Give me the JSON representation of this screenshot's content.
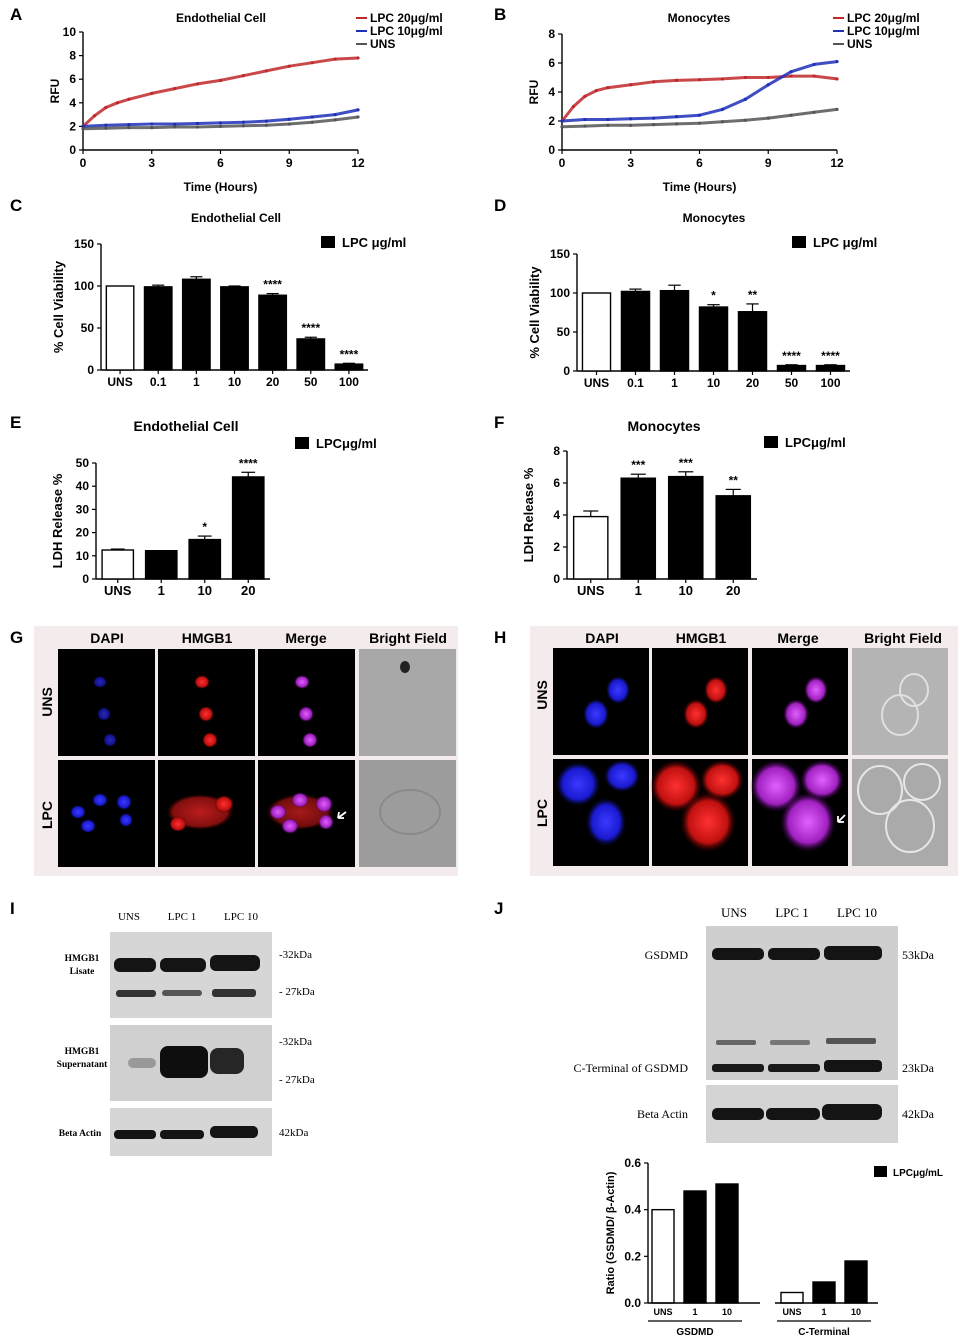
{
  "panels": {
    "A": "A",
    "B": "B",
    "C": "C",
    "D": "D",
    "E": "E",
    "F": "F",
    "G": "G",
    "H": "H",
    "I": "I",
    "J": "J"
  },
  "chart_data": [
    {
      "id": "A",
      "type": "line",
      "title": "Endothelial Cell",
      "xlabel": "Time (Hours)",
      "ylabel": "RFU",
      "xlim": [
        0,
        12
      ],
      "ylim": [
        0,
        10
      ],
      "xticks": [
        "0",
        "3",
        "6",
        "9",
        "12"
      ],
      "yticks": [
        "0",
        "2",
        "4",
        "6",
        "8",
        "10"
      ],
      "legend_position": "top-right",
      "series": [
        {
          "name": "LPC 20μg/ml",
          "color": "#c0282a",
          "x": [
            0,
            0.5,
            1,
            1.5,
            2,
            3,
            4,
            5,
            6,
            7,
            8,
            9,
            10,
            11,
            12
          ],
          "y": [
            2.0,
            2.9,
            3.6,
            4.0,
            4.3,
            4.8,
            5.2,
            5.6,
            5.9,
            6.3,
            6.7,
            7.1,
            7.4,
            7.7,
            7.8
          ]
        },
        {
          "name": "LPC 10μg/ml",
          "color": "#1f2fb8",
          "x": [
            0,
            1,
            2,
            3,
            4,
            5,
            6,
            7,
            8,
            9,
            10,
            11,
            12
          ],
          "y": [
            2.0,
            2.1,
            2.15,
            2.2,
            2.2,
            2.25,
            2.3,
            2.35,
            2.45,
            2.6,
            2.8,
            3.0,
            3.4
          ]
        },
        {
          "name": "UNS",
          "color": "#555555",
          "x": [
            0,
            1,
            2,
            3,
            4,
            5,
            6,
            7,
            8,
            9,
            10,
            11,
            12
          ],
          "y": [
            1.8,
            1.85,
            1.9,
            1.9,
            1.95,
            1.95,
            2.0,
            2.05,
            2.1,
            2.2,
            2.35,
            2.55,
            2.8
          ]
        }
      ]
    },
    {
      "id": "B",
      "type": "line",
      "title": "Monocytes",
      "xlabel": "Time (Hours)",
      "ylabel": "RFU",
      "xlim": [
        0,
        12
      ],
      "ylim": [
        0,
        8
      ],
      "xticks": [
        "0",
        "3",
        "6",
        "9",
        "12"
      ],
      "yticks": [
        "0",
        "2",
        "4",
        "6",
        "8"
      ],
      "legend_position": "top-right",
      "series": [
        {
          "name": "LPC 20μg/ml",
          "color": "#c0282a",
          "x": [
            0,
            0.5,
            1,
            1.5,
            2,
            3,
            4,
            5,
            6,
            7,
            8,
            9,
            10,
            11,
            12
          ],
          "y": [
            2.0,
            3.0,
            3.7,
            4.1,
            4.3,
            4.5,
            4.7,
            4.8,
            4.85,
            4.9,
            5.0,
            5.0,
            5.1,
            5.1,
            4.9
          ]
        },
        {
          "name": "LPC 10μg/ml",
          "color": "#1f2fb8",
          "x": [
            0,
            1,
            2,
            3,
            4,
            5,
            6,
            7,
            8,
            9,
            10,
            11,
            12
          ],
          "y": [
            2.0,
            2.1,
            2.1,
            2.15,
            2.2,
            2.3,
            2.4,
            2.8,
            3.5,
            4.5,
            5.4,
            5.9,
            6.1
          ]
        },
        {
          "name": "UNS",
          "color": "#555555",
          "x": [
            0,
            1,
            2,
            3,
            4,
            5,
            6,
            7,
            8,
            9,
            10,
            11,
            12
          ],
          "y": [
            1.6,
            1.65,
            1.7,
            1.7,
            1.75,
            1.8,
            1.85,
            1.95,
            2.05,
            2.2,
            2.4,
            2.6,
            2.8
          ]
        }
      ]
    },
    {
      "id": "C",
      "type": "bar",
      "title": "Endothelial Cell",
      "ylabel": "% Cell Viability",
      "ylim": [
        0,
        150
      ],
      "yticks": [
        "0",
        "50",
        "100",
        "150"
      ],
      "legend": "LPC μg/ml",
      "legend_position": "top-right",
      "categories": [
        "UNS",
        "0.1",
        "1",
        "10",
        "20",
        "50",
        "100"
      ],
      "values": [
        100,
        99,
        108,
        99,
        89,
        37,
        7
      ],
      "errors": [
        0,
        2,
        3,
        1,
        2,
        2,
        1
      ],
      "fills": [
        "white",
        "black",
        "black",
        "black",
        "black",
        "black",
        "black"
      ],
      "significance": [
        "",
        "",
        "",
        "",
        "****",
        "****",
        "****"
      ]
    },
    {
      "id": "D",
      "type": "bar",
      "title": "Monocytes",
      "ylabel": "% Cell Viability",
      "ylim": [
        0,
        150
      ],
      "yticks": [
        "0",
        "50",
        "100",
        "150"
      ],
      "legend": "LPC μg/ml",
      "legend_position": "top-right",
      "categories": [
        "UNS",
        "0.1",
        "1",
        "10",
        "20",
        "50",
        "100"
      ],
      "values": [
        100,
        102,
        103,
        82,
        76,
        7,
        7
      ],
      "errors": [
        0,
        3,
        7,
        3,
        10,
        1,
        1
      ],
      "fills": [
        "white",
        "black",
        "black",
        "black",
        "black",
        "black",
        "black"
      ],
      "significance": [
        "",
        "",
        "",
        "*",
        "**",
        "****",
        "****"
      ]
    },
    {
      "id": "E",
      "type": "bar",
      "title": "Endothelial Cell",
      "ylabel": "LDH Release %",
      "ylim": [
        0,
        50
      ],
      "yticks": [
        "0",
        "10",
        "20",
        "30",
        "40",
        "50"
      ],
      "legend": "LPCμg/ml",
      "legend_position": "top-right",
      "categories": [
        "UNS",
        "1",
        "10",
        "20"
      ],
      "values": [
        12.5,
        12.2,
        17,
        44
      ],
      "errors": [
        0.4,
        0,
        1.5,
        2
      ],
      "fills": [
        "white",
        "black",
        "black",
        "black"
      ],
      "significance": [
        "",
        "",
        "*",
        "****"
      ]
    },
    {
      "id": "F",
      "type": "bar",
      "title": "Monocytes",
      "ylabel": "LDH Release %",
      "ylim": [
        0,
        8
      ],
      "yticks": [
        "0",
        "2",
        "4",
        "6",
        "8"
      ],
      "legend": "LPCμg/ml",
      "legend_position": "top-right",
      "categories": [
        "UNS",
        "1",
        "10",
        "20"
      ],
      "values": [
        3.9,
        6.3,
        6.4,
        5.2
      ],
      "errors": [
        0.35,
        0.25,
        0.3,
        0.4
      ],
      "fills": [
        "white",
        "black",
        "black",
        "black"
      ],
      "significance": [
        "",
        "***",
        "***",
        "**"
      ]
    },
    {
      "id": "J",
      "type": "bar",
      "ylabel": "Ratio (GSDMD/ β-Actin)",
      "ylim": [
        0,
        0.6
      ],
      "yticks": [
        "0.0",
        "0.2",
        "0.4",
        "0.6"
      ],
      "legend": "LPCμg/mL",
      "legend_position": "top-right",
      "groups": [
        {
          "name": "GSDMD",
          "categories": [
            "UNS",
            "1",
            "10"
          ],
          "values": [
            0.4,
            0.48,
            0.51
          ],
          "fills": [
            "white",
            "black",
            "black"
          ]
        },
        {
          "name": "C-Terminal",
          "categories": [
            "UNS",
            "1",
            "10"
          ],
          "values": [
            0.045,
            0.09,
            0.18
          ],
          "fills": [
            "white",
            "black",
            "black"
          ]
        }
      ]
    }
  ],
  "microscopy": {
    "G": {
      "columns": [
        "DAPI",
        "HMGB1",
        "Merge",
        "Bright Field"
      ],
      "rows": [
        "UNS",
        "LPC"
      ]
    },
    "H": {
      "columns": [
        "DAPI",
        "HMGB1",
        "Merge",
        "Bright Field"
      ],
      "rows": [
        "UNS",
        "LPC"
      ]
    }
  },
  "blot_I": {
    "lanes": [
      "UNS",
      "LPC 1",
      "LPC 10"
    ],
    "rows": [
      "HMGB1\nLisate",
      "HMGB1\nSupernatant",
      "Beta Actin"
    ],
    "markers": [
      "-32kDa",
      "- 27kDa",
      "-32kDa",
      "- 27kDa",
      "42kDa"
    ]
  },
  "blot_J": {
    "lanes": [
      "UNS",
      "LPC 1",
      "LPC 10"
    ],
    "rows": [
      "GSDMD",
      "C-Terminal of GSDMD",
      "Beta Actin"
    ],
    "markers": [
      "53kDa",
      "23kDa",
      "42kDa"
    ]
  }
}
